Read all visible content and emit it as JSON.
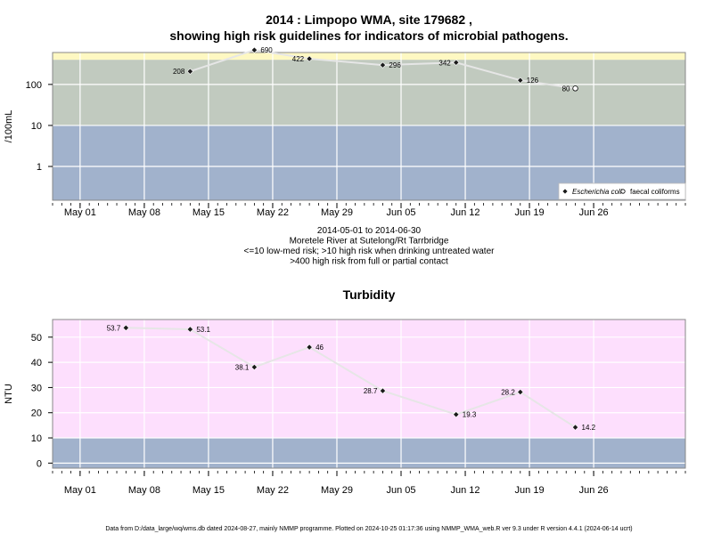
{
  "chart_data": [
    {
      "type": "scatter",
      "title": [
        "2014 : Limpopo WMA, site 179682 ,",
        "showing high risk guidelines for indicators of microbial pathogens."
      ],
      "ylabel": "/100mL",
      "y_scale": "log",
      "ylim": [
        0.15,
        600
      ],
      "xlim": [
        "2014-04-28",
        "2014-07-06"
      ],
      "x_ticks": [
        "May 01",
        "May 08",
        "May 15",
        "May 22",
        "May 29",
        "Jun 05",
        "Jun 12",
        "Jun 19",
        "Jun 26"
      ],
      "y_ticks": [
        "1",
        "10",
        "100"
      ],
      "bands": [
        {
          "from": 0.15,
          "to": 10,
          "color": "#a1b2cc",
          "label": "<=10 low-med risk"
        },
        {
          "from": 10,
          "to": 400,
          "color": "#c1cabf",
          "label": ">10 high risk when drinking untreated water"
        },
        {
          "from": 400,
          "to": 600,
          "color": "#fef8c2",
          "label": ">400 high risk from full or partial contact"
        }
      ],
      "grid": true,
      "legend_position": "bottom-right",
      "series": [
        {
          "name": "Escherichia coli",
          "marker": "filled-diamond",
          "points": [
            {
              "x": "2014-05-13",
              "y": 208,
              "label": "208"
            },
            {
              "x": "2014-05-20",
              "y": 690,
              "label": "690"
            },
            {
              "x": "2014-05-26",
              "y": 422,
              "label": "422"
            },
            {
              "x": "2014-06-03",
              "y": 296,
              "label": "296"
            },
            {
              "x": "2014-06-11",
              "y": 342,
              "label": "342"
            },
            {
              "x": "2014-06-18",
              "y": 126,
              "label": "126"
            }
          ]
        },
        {
          "name": "faecal coliforms",
          "marker": "open-circle",
          "points": [
            {
              "x": "2014-06-24",
              "y": 80,
              "label": "80"
            }
          ]
        }
      ],
      "notes": [
        "2014-05-01 to 2014-06-30",
        "Moretele River at Sutelong/Rt Tarrbridge",
        "<=10 low-med risk; >10 high risk when drinking untreated water",
        ">400 high risk from full or partial contact"
      ]
    },
    {
      "type": "scatter",
      "title": "Turbidity",
      "ylabel": "NTU",
      "ylim": [
        -2,
        57
      ],
      "xlim": [
        "2014-04-28",
        "2014-07-06"
      ],
      "x_ticks": [
        "May 01",
        "May 08",
        "May 15",
        "May 22",
        "May 29",
        "Jun 05",
        "Jun 12",
        "Jun 19",
        "Jun 26"
      ],
      "y_ticks": [
        "0",
        "10",
        "20",
        "30",
        "40",
        "50"
      ],
      "bands": [
        {
          "from": -2,
          "to": 10,
          "color": "#a1b2cc"
        },
        {
          "from": 10,
          "to": 57,
          "color": "#fddffd"
        }
      ],
      "grid": true,
      "series": [
        {
          "name": "Turbidity",
          "marker": "filled-diamond",
          "points": [
            {
              "x": "2014-05-06",
              "y": 53.7,
              "label": "53.7"
            },
            {
              "x": "2014-05-13",
              "y": 53.1,
              "label": "53.1"
            },
            {
              "x": "2014-05-20",
              "y": 38.1,
              "label": "38.1"
            },
            {
              "x": "2014-05-26",
              "y": 46,
              "label": "46"
            },
            {
              "x": "2014-06-03",
              "y": 28.7,
              "label": "28.7"
            },
            {
              "x": "2014-06-11",
              "y": 19.3,
              "label": "19.3"
            },
            {
              "x": "2014-06-18",
              "y": 28.2,
              "label": "28.2"
            },
            {
              "x": "2014-06-24",
              "y": 14.2,
              "label": "14.2"
            }
          ]
        }
      ]
    }
  ],
  "footer": "Data from D:/data_large/wq/wms.db dated 2024-08-27, mainly NMMP programme. Plotted on 2024-10-25 01:17:36 using NMMP_WMA_web.R ver 9.3 under R version 4.4.1 (2024-06-14 ucrt)",
  "colors": {
    "line": "#e6e6e6",
    "grid": "#ffffff",
    "border": "#888888"
  }
}
